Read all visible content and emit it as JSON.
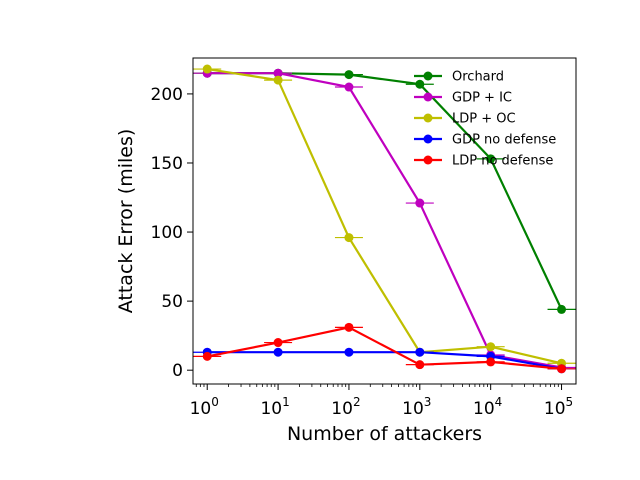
{
  "chart_data": {
    "type": "line",
    "xlabel": "Number of attackers",
    "ylabel": "Attack Error (miles)",
    "x_scale": "log",
    "x": [
      1,
      10,
      100,
      1000,
      10000,
      100000
    ],
    "x_ticks": [
      {
        "base": "10",
        "exp": "0"
      },
      {
        "base": "10",
        "exp": "1"
      },
      {
        "base": "10",
        "exp": "2"
      },
      {
        "base": "10",
        "exp": "3"
      },
      {
        "base": "10",
        "exp": "4"
      },
      {
        "base": "10",
        "exp": "5"
      }
    ],
    "xlim": [
      0.63,
      160000
    ],
    "ylim": [
      -10,
      226
    ],
    "y_ticks": [
      "0",
      "50",
      "100",
      "150",
      "200"
    ],
    "y_tick_values": [
      0,
      50,
      100,
      150,
      200
    ],
    "legend_position": "upper-right",
    "series": [
      {
        "name": "Orchard",
        "color": "#008000",
        "values": [
          215,
          215,
          214,
          207,
          153,
          44
        ]
      },
      {
        "name": "GDP + IC",
        "color": "#bf00bf",
        "values": [
          215,
          215,
          205,
          121,
          11,
          2
        ]
      },
      {
        "name": "LDP + OC",
        "color": "#bfbf00",
        "values": [
          218,
          210,
          96,
          13,
          17,
          5
        ]
      },
      {
        "name": "GDP no defense",
        "color": "#0000ff",
        "values": [
          13,
          13,
          13,
          13,
          10,
          1
        ]
      },
      {
        "name": "LDP no defense",
        "color": "#ff0000",
        "values": [
          10,
          20,
          31,
          4,
          6,
          1
        ]
      }
    ]
  }
}
